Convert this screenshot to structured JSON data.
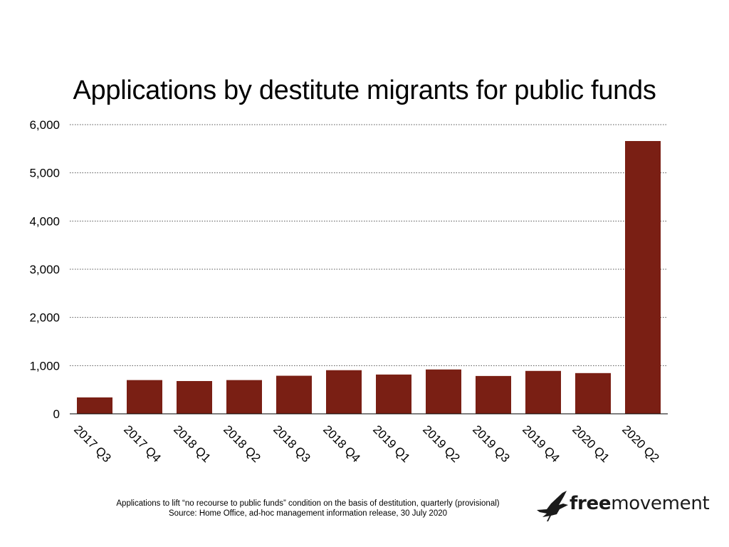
{
  "chart_data": {
    "type": "bar",
    "title": "Applications by destitute migrants for public funds",
    "categories": [
      "2017 Q3",
      "2017 Q4",
      "2018 Q1",
      "2018 Q2",
      "2018 Q3",
      "2018 Q4",
      "2019 Q1",
      "2019 Q2",
      "2019 Q3",
      "2019 Q4",
      "2020 Q1",
      "2020 Q2"
    ],
    "values": [
      340,
      700,
      680,
      700,
      790,
      905,
      815,
      920,
      785,
      890,
      845,
      5660
    ],
    "ylim": [
      0,
      6000
    ],
    "yticks": [
      0,
      1000,
      2000,
      3000,
      4000,
      5000,
      6000
    ],
    "ytick_labels": [
      "0",
      "1,000",
      "2,000",
      "3,000",
      "4,000",
      "5,000",
      "6,000"
    ],
    "grid": true,
    "bar_color": "#7a1f14",
    "xlabel": "",
    "ylabel": ""
  },
  "caption": "Applications to lift “no recourse to public funds” condition on the basis of destitution, quarterly (provisional)",
  "source": "Source: Home Office, ad-hoc management information release, 30 July 2020",
  "logo": {
    "bold": "free",
    "regular": "movement",
    "icon": "bird-icon"
  }
}
